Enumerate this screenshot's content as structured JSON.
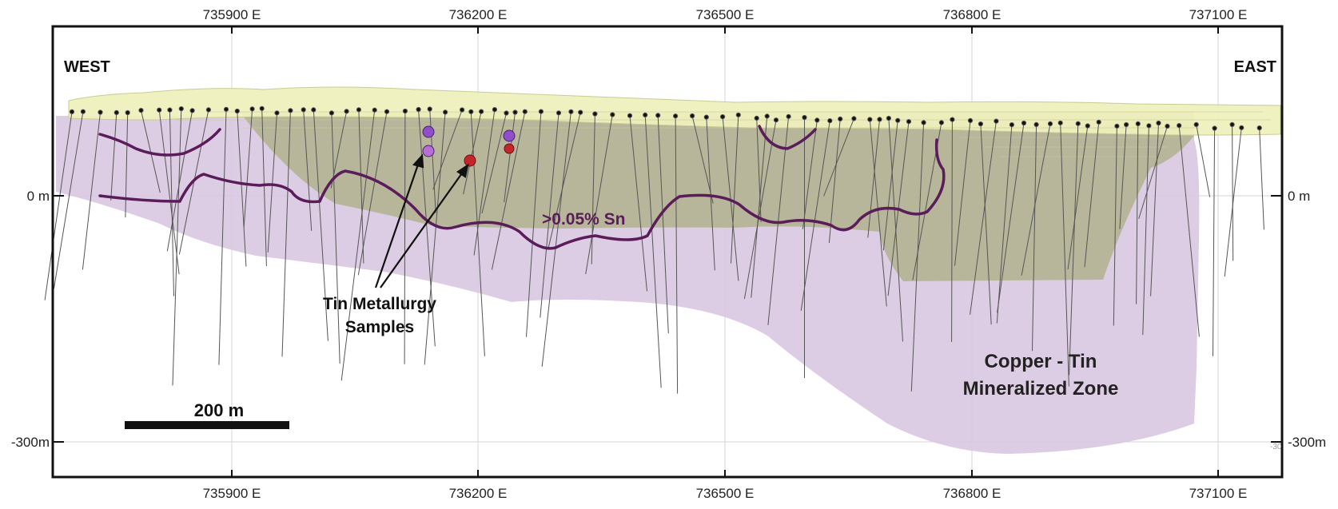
{
  "axes": {
    "easting_ticks": [
      "735900 E",
      "736200 E",
      "736500 E",
      "736800 E",
      "737100 E"
    ],
    "depth_ticks_left": [
      "0 m",
      "-300m"
    ],
    "depth_ticks_right": [
      "0 m",
      "-300m"
    ],
    "right_small_fragment": "-30"
  },
  "labels": {
    "west": "WEST",
    "east": "EAST",
    "sn_contour": ">0.05% Sn",
    "samples_line1": "Tin Metallurgy",
    "samples_line2": "Samples",
    "zone_line1": "Copper - Tin",
    "zone_line2": "Mineralized Zone",
    "scale_bar": "200 m"
  },
  "colors": {
    "frame": "#111111",
    "mineralized_zone": "#d9c8e1",
    "pit_fill": "#a8ad7e",
    "topo_fill": "#eef0bd",
    "sn_contour": "#5a1d5a",
    "drillhole": "#555555",
    "sample_purple": "#8e4fc9",
    "sample_red": "#c3262b"
  }
}
